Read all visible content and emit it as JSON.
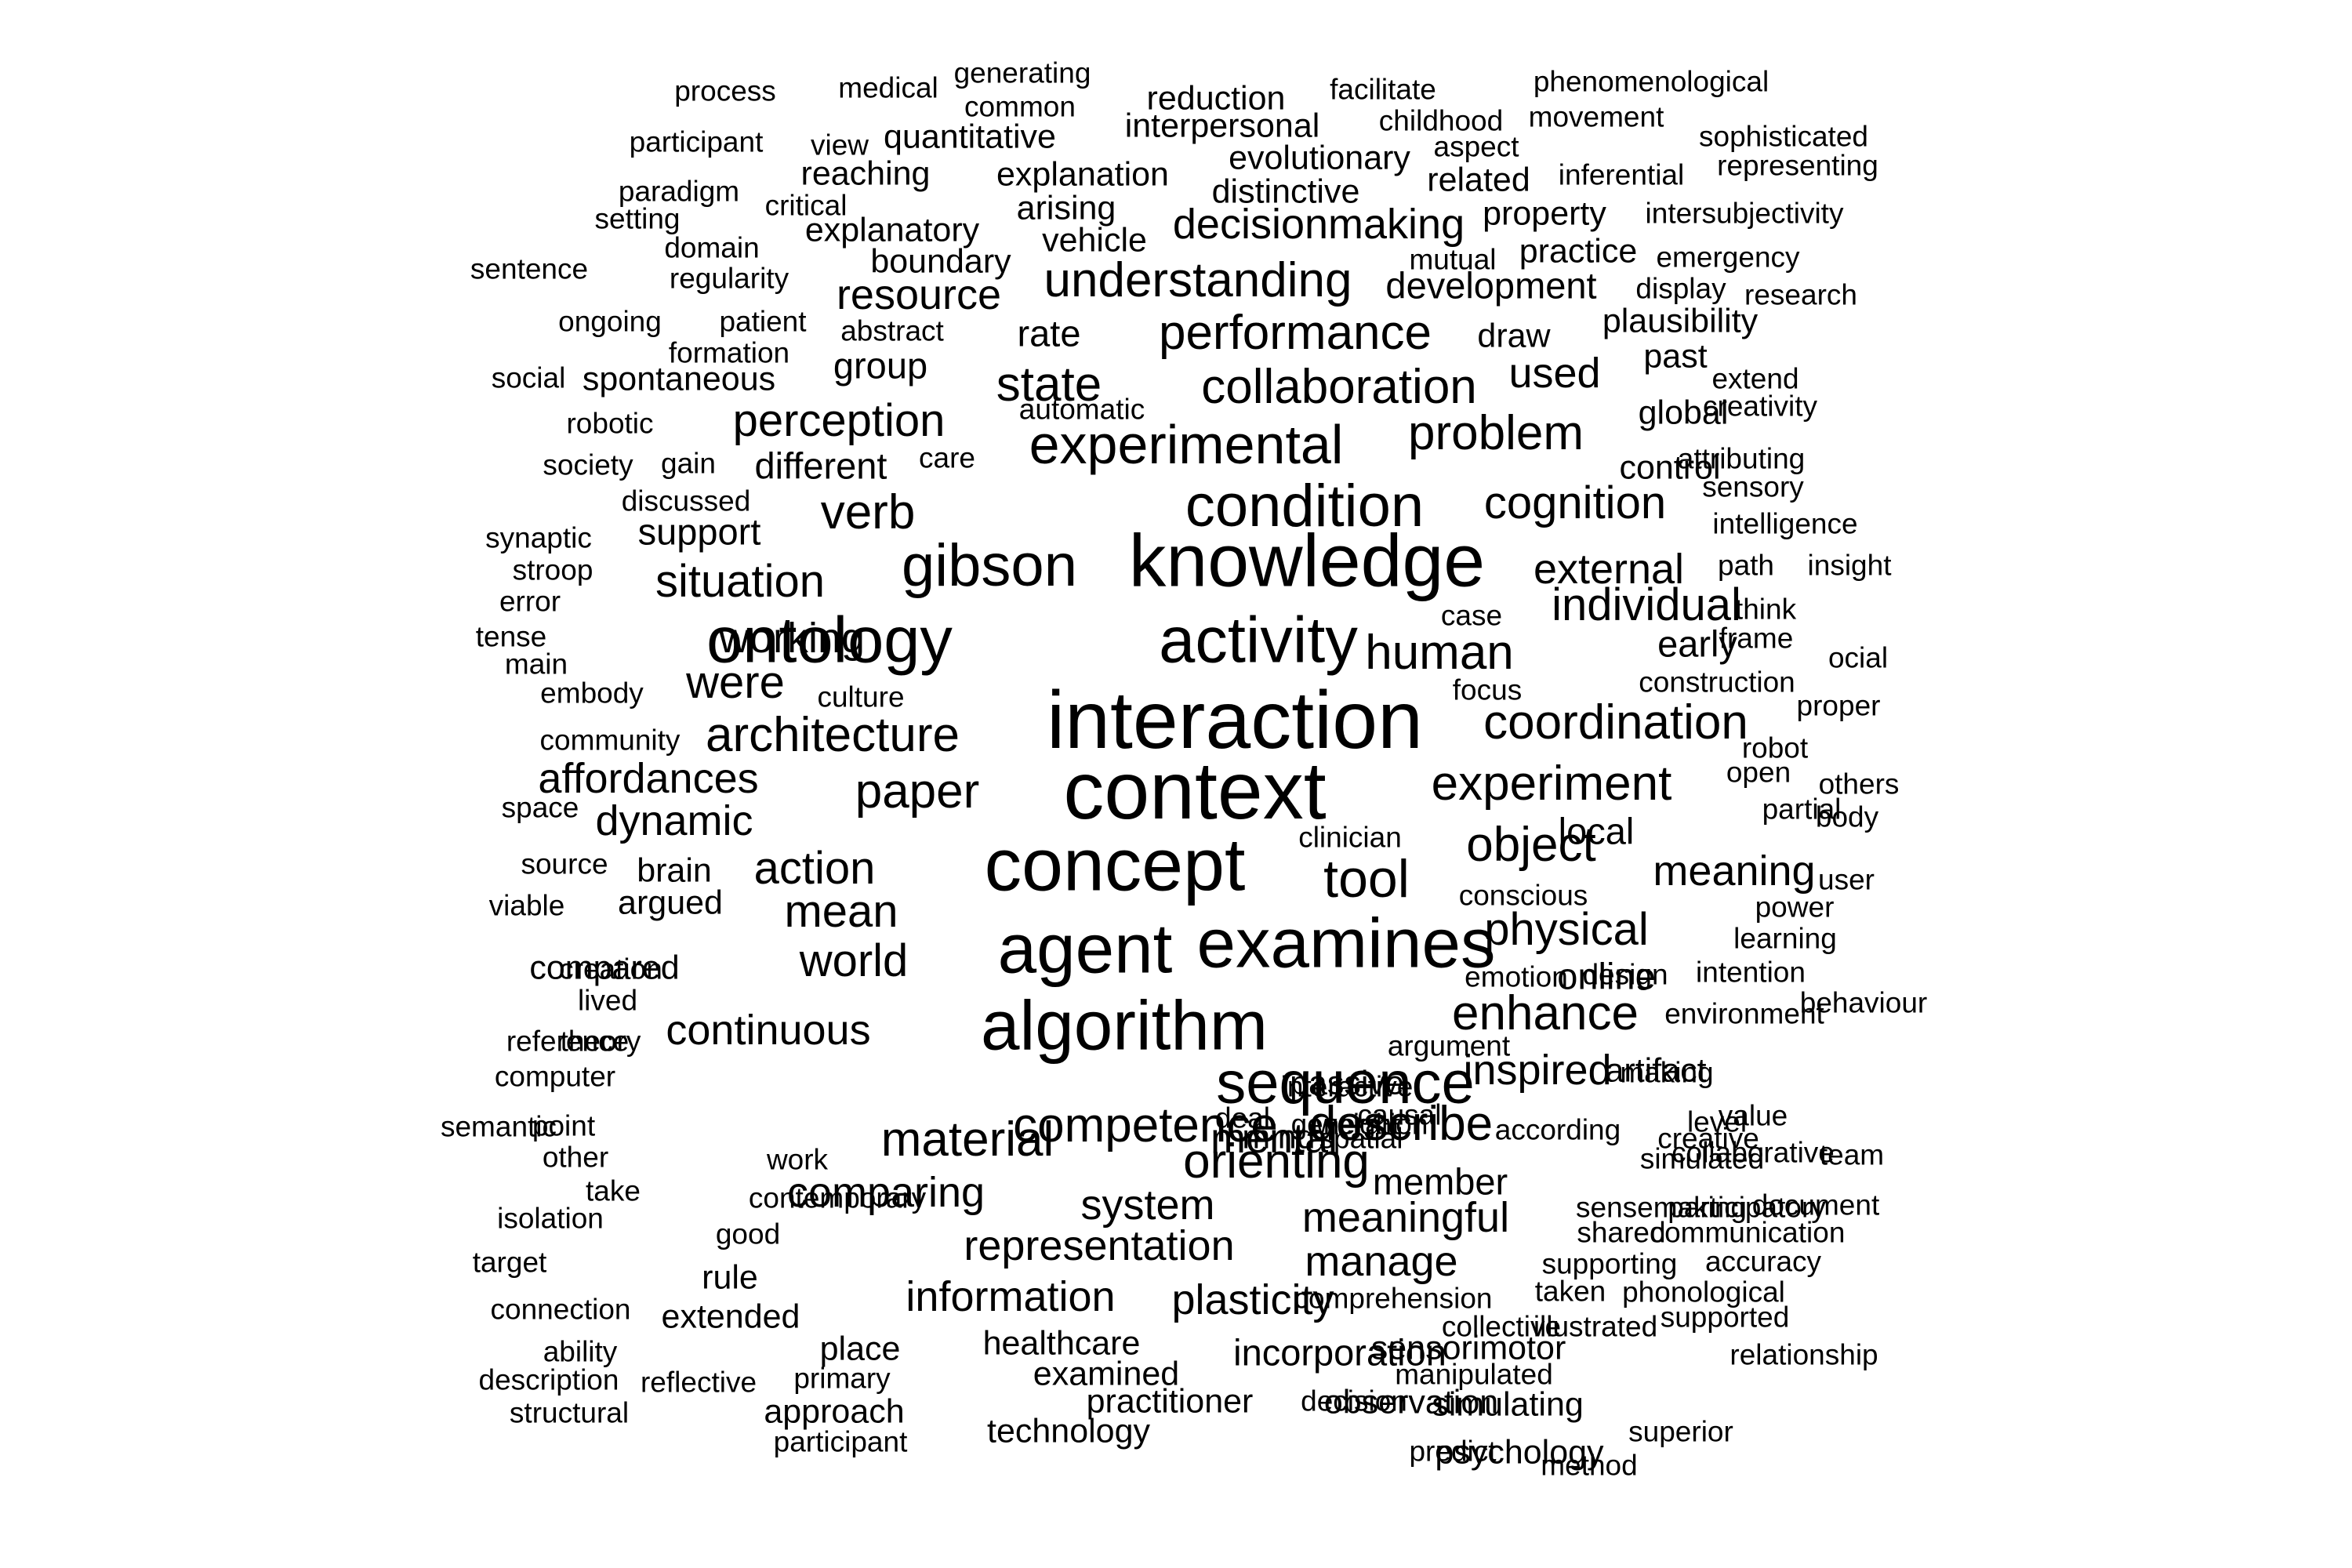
{
  "word_cloud": {
    "text_color": "#000000",
    "background_color": "#ffffff",
    "words": [
      "process",
      "medical",
      "generating",
      "common",
      "reduction",
      "facilitate",
      "phenomenological",
      "childhood",
      "movement",
      "participant",
      "view",
      "quantitative",
      "interpersonal",
      "aspect",
      "sophisticated",
      "evolutionary",
      "reaching",
      "explanation",
      "related",
      "inferential",
      "representing",
      "paradigm",
      "distinctive",
      "critical",
      "arising",
      "setting",
      "property",
      "intersubjectivity",
      "explanatory",
      "decisionmaking",
      "domain",
      "vehicle",
      "mutual",
      "practice",
      "emergency",
      "sentence",
      "boundary",
      "regularity",
      "understanding",
      "development",
      "display",
      "research",
      "resource",
      "ongoing",
      "patient",
      "abstract",
      "plausibility",
      "performance",
      "rate",
      "draw",
      "formation",
      "past",
      "group",
      "social",
      "spontaneous",
      "used",
      "state",
      "collaboration",
      "extend",
      "automatic",
      "robotic",
      "perception",
      "global",
      "creativity",
      "problem",
      "experimental",
      "care",
      "society",
      "gain",
      "different",
      "attributing",
      "control",
      "sensory",
      "discussed",
      "verb",
      "condition",
      "cognition",
      "support",
      "intelligence",
      "synaptic",
      "knowledge",
      "gibson",
      "stroop",
      "path",
      "insight",
      "situation",
      "external",
      "error",
      "case",
      "individual",
      "think",
      "tense",
      "working",
      "ontology",
      "activity",
      "human",
      "early",
      "frame",
      "ocial",
      "main",
      "were",
      "embody",
      "culture",
      "construction",
      "focus",
      "interaction",
      "proper",
      "community",
      "architecture",
      "coordination",
      "robot",
      "affordances",
      "open",
      "others",
      "context",
      "experiment",
      "paper",
      "partial",
      "space",
      "dynamic",
      "clinician",
      "local",
      "body",
      "source",
      "concept",
      "tool",
      "object",
      "brain",
      "action",
      "meaning",
      "user",
      "viable",
      "argued",
      "conscious",
      "power",
      "mean",
      "creation",
      "physical",
      "learning",
      "design",
      "agent",
      "examines",
      "compared",
      "world",
      "emotion",
      "online",
      "intention",
      "lived",
      "behaviour",
      "enhance",
      "environment",
      "algorithm",
      "reference",
      "continuous",
      "theory",
      "argument",
      "artifact",
      "sequence",
      "computer",
      "interactive",
      "making",
      "inspired",
      "passive",
      "level",
      "point",
      "competence",
      "causal",
      "describe",
      "generation",
      "deal",
      "value",
      "weight",
      "according",
      "mental",
      "semantic",
      "creative",
      "simulated",
      "mind",
      "material",
      "spatial",
      "other",
      "work",
      "team",
      "orienting",
      "collaborative",
      "take",
      "contemporary",
      "member",
      "comparing",
      "sensemaking",
      "participatory",
      "document",
      "isolation",
      "system",
      "meaningful",
      "good",
      "communication",
      "shared",
      "representation",
      "target",
      "accuracy",
      "supporting",
      "manage",
      "rule",
      "taken",
      "phonological",
      "connection",
      "information",
      "plasticity",
      "comprehension",
      "extended",
      "supported",
      "collective",
      "illustrated",
      "ability",
      "healthcare",
      "place",
      "incorporation",
      "relationship",
      "sensorimotor",
      "description",
      "examined",
      "reflective",
      "primary",
      "manipulated",
      "practitioner",
      "decision",
      "approach",
      "observation",
      "simulating",
      "superior",
      "structural",
      "technology",
      "participant",
      "predict",
      "psychology",
      "method"
    ]
  }
}
